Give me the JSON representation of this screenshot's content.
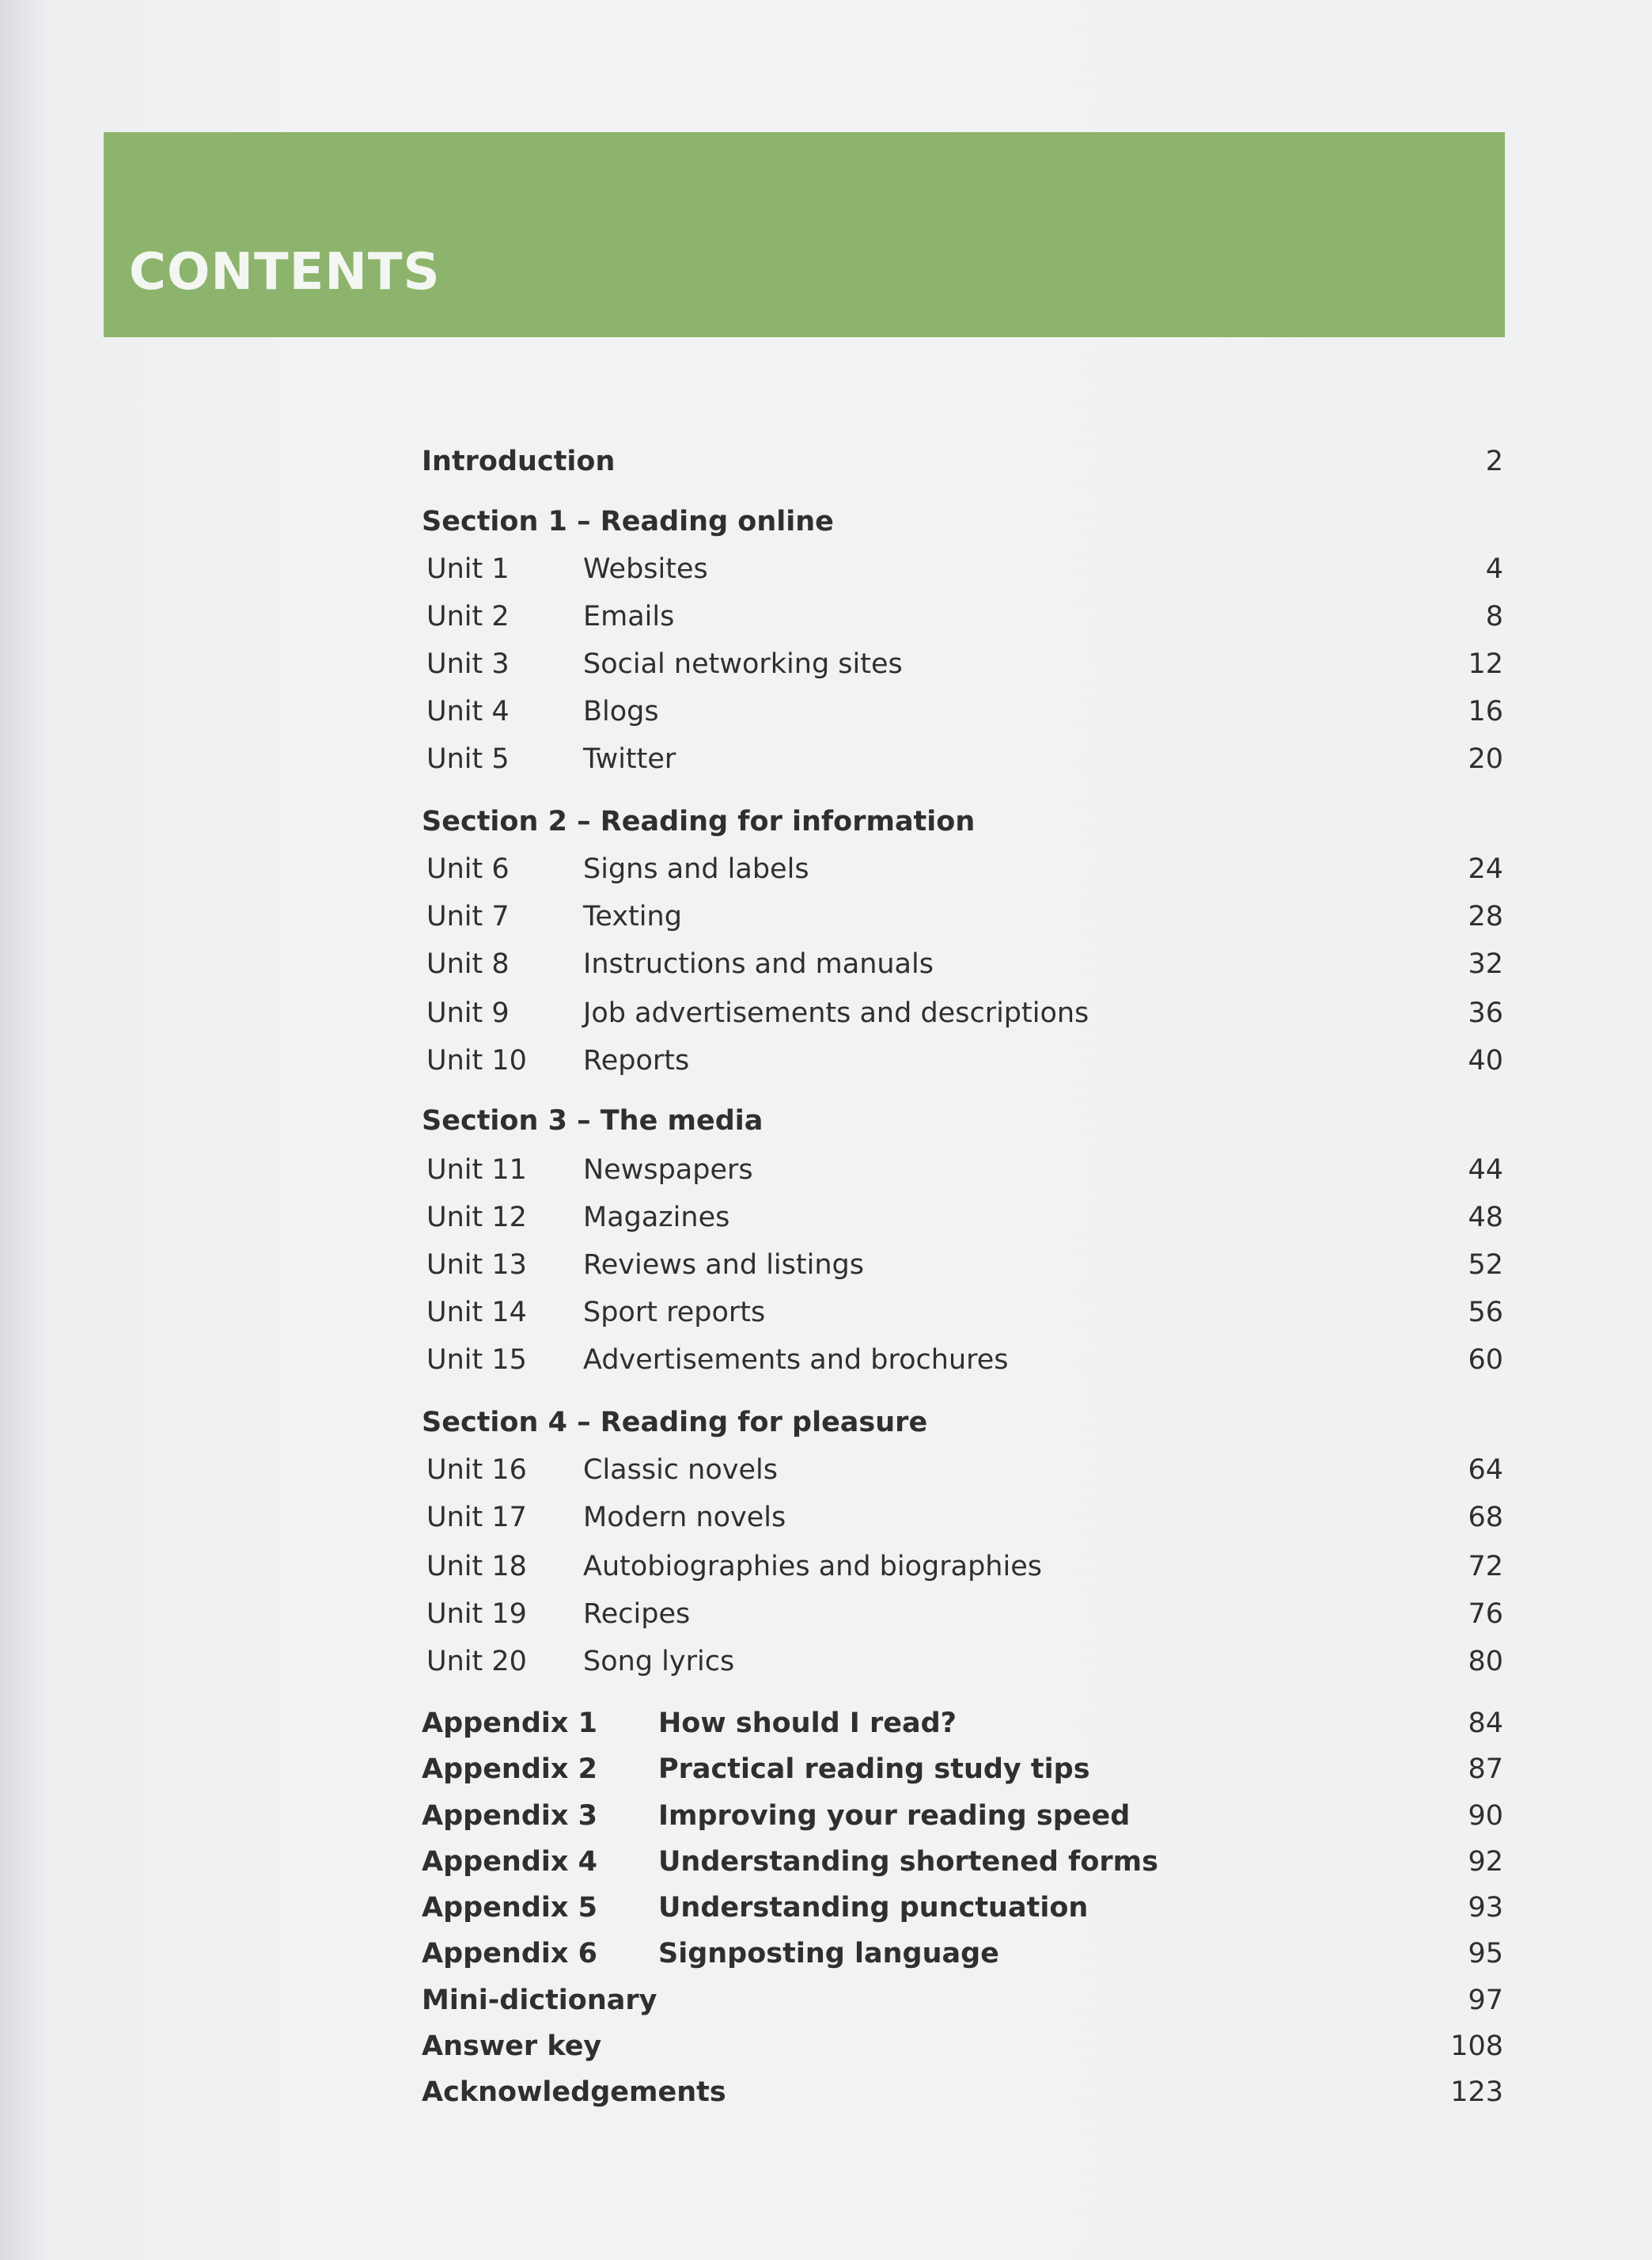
{
  "title": "CONTENTS",
  "colors": {
    "banner": "#8cb46c",
    "text": "#2f2f2f"
  },
  "entries": [
    {
      "type": "head",
      "label": "Introduction",
      "page": "2"
    },
    {
      "type": "section",
      "label": "Section 1 – Reading online"
    },
    {
      "type": "unit",
      "unit": "Unit 1",
      "title": "Websites",
      "page": "4"
    },
    {
      "type": "unit",
      "unit": "Unit 2",
      "title": "Emails",
      "page": "8"
    },
    {
      "type": "unit",
      "unit": "Unit 3",
      "title": "Social networking sites",
      "page": "12"
    },
    {
      "type": "unit",
      "unit": "Unit 4",
      "title": "Blogs",
      "page": "16"
    },
    {
      "type": "unit",
      "unit": "Unit 5",
      "title": "Twitter",
      "page": "20"
    },
    {
      "type": "section",
      "label": "Section 2 – Reading for information"
    },
    {
      "type": "unit",
      "unit": "Unit 6",
      "title": "Signs and labels",
      "page": "24"
    },
    {
      "type": "unit",
      "unit": "Unit 7",
      "title": "Texting",
      "page": "28"
    },
    {
      "type": "unit",
      "unit": "Unit 8",
      "title": "Instructions and manuals",
      "page": "32"
    },
    {
      "type": "unit",
      "unit": "Unit 9",
      "title": "Job advertisements and descriptions",
      "page": "36"
    },
    {
      "type": "unit",
      "unit": "Unit 10",
      "title": "Reports",
      "page": "40"
    },
    {
      "type": "section",
      "label": "Section 3 – The media"
    },
    {
      "type": "unit",
      "unit": "Unit 11",
      "title": "Newspapers",
      "page": "44"
    },
    {
      "type": "unit",
      "unit": "Unit 12",
      "title": "Magazines",
      "page": "48"
    },
    {
      "type": "unit",
      "unit": "Unit 13",
      "title": "Reviews and listings",
      "page": "52"
    },
    {
      "type": "unit",
      "unit": "Unit 14",
      "title": "Sport reports",
      "page": "56"
    },
    {
      "type": "unit",
      "unit": "Unit 15",
      "title": "Advertisements and brochures",
      "page": "60"
    },
    {
      "type": "section",
      "label": "Section 4 – Reading for pleasure"
    },
    {
      "type": "unit",
      "unit": "Unit 16",
      "title": "Classic novels",
      "page": "64"
    },
    {
      "type": "unit",
      "unit": "Unit 17",
      "title": "Modern novels",
      "page": "68"
    },
    {
      "type": "unit",
      "unit": "Unit 18",
      "title": "Autobiographies and biographies",
      "page": "72"
    },
    {
      "type": "unit",
      "unit": "Unit 19",
      "title": "Recipes",
      "page": "76"
    },
    {
      "type": "unit",
      "unit": "Unit 20",
      "title": "Song lyrics",
      "page": "80"
    },
    {
      "type": "appendix",
      "label": "Appendix 1",
      "title": "How should I read?",
      "page": "84"
    },
    {
      "type": "appendix",
      "label": "Appendix 2",
      "title": "Practical reading study tips",
      "page": "87"
    },
    {
      "type": "appendix",
      "label": "Appendix 3",
      "title": "Improving your reading speed",
      "page": "90"
    },
    {
      "type": "appendix",
      "label": "Appendix 4",
      "title": "Understanding shortened forms",
      "page": "92"
    },
    {
      "type": "appendix",
      "label": "Appendix 5",
      "title": "Understanding punctuation",
      "page": "93"
    },
    {
      "type": "appendix",
      "label": "Appendix 6",
      "title": "Signposting language",
      "page": "95"
    },
    {
      "type": "head",
      "label": "Mini-dictionary",
      "page": "97"
    },
    {
      "type": "head",
      "label": "Answer key",
      "page": "108"
    },
    {
      "type": "head",
      "label": "Acknowledgements",
      "page": "123"
    }
  ]
}
